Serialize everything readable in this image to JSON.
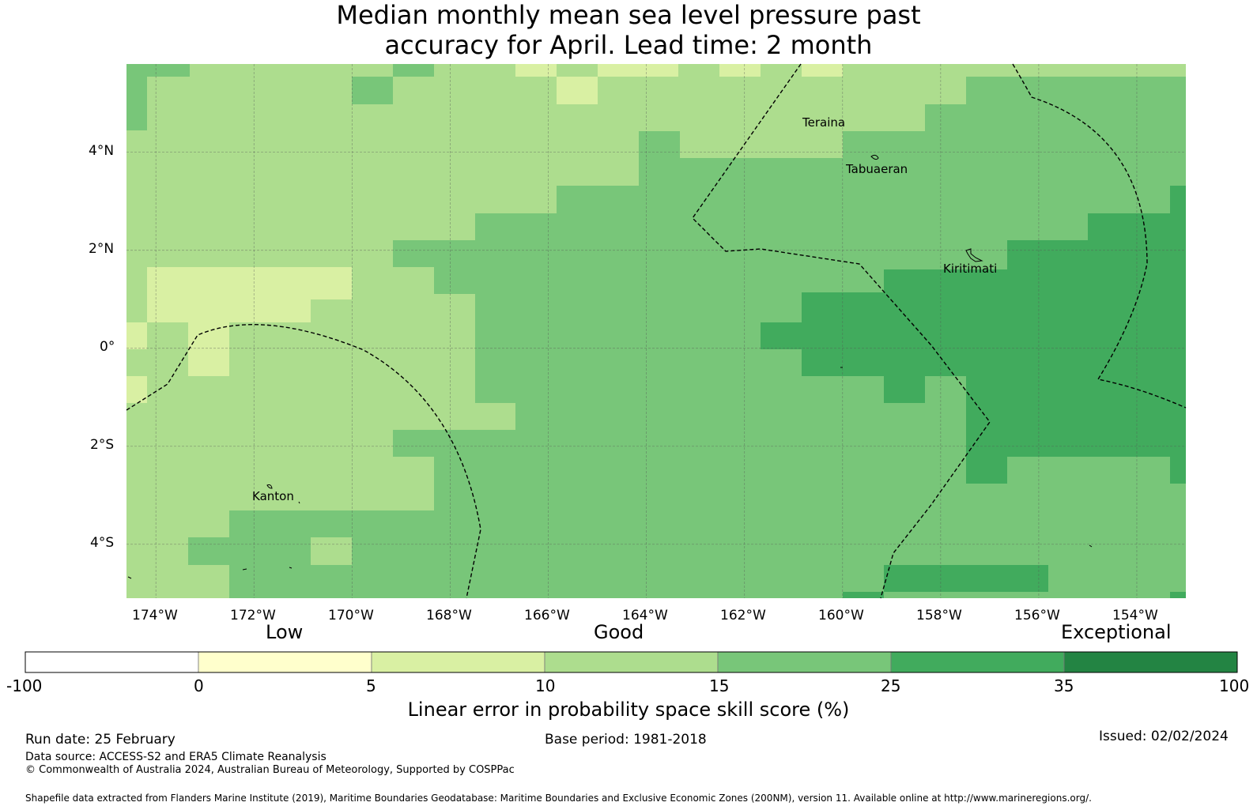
{
  "title": {
    "line1": "Median monthly mean sea level pressure past",
    "line2": "accuracy for April. Lead time: 2 month"
  },
  "map": {
    "lon_labels": [
      "174°W",
      "172°W",
      "170°W",
      "168°W",
      "166°W",
      "164°W",
      "162°W",
      "160°W",
      "158°W",
      "156°W",
      "154°W"
    ],
    "lat_labels": [
      "4°N",
      "2°N",
      "0°",
      "2°S",
      "4°S"
    ],
    "places": [
      "Teraina",
      "Tabuaeran",
      "Kiritimati",
      "Kanton"
    ],
    "lon_range": [
      -174.6,
      -153.0
    ],
    "lat_range": [
      -5.1,
      5.8
    ]
  },
  "legend": {
    "categories": [
      "Low",
      "Good",
      "Exceptional"
    ],
    "ticks": [
      "-100",
      "0",
      "5",
      "10",
      "15",
      "25",
      "35",
      "100"
    ],
    "colors": [
      "#ffffff",
      "#ffffcc",
      "#d9f0a3",
      "#addd8e",
      "#78c679",
      "#41ab5d",
      "#238443"
    ],
    "label": "Linear error in probability space skill score (%)"
  },
  "footer": {
    "run_date": "Run date: 25 February",
    "base_period": "Base period: 1981-2018",
    "issued": "Issued: 02/02/2024",
    "data_source": "Data source: ACCESS-S2 and ERA5 Climate Reanalysis",
    "copyright": "© Commonwealth of Australia 2024, Australian Bureau of Meteorology, Supported by COSPPac",
    "shapefile": "Shapefile data extracted from Flanders Marine Institute (2019), Maritime Boundaries Geodatabase: Maritime Boundaries and Exclusive Economic Zones (200NM), version 11. Available online at http://www.marineregions.org/."
  }
}
